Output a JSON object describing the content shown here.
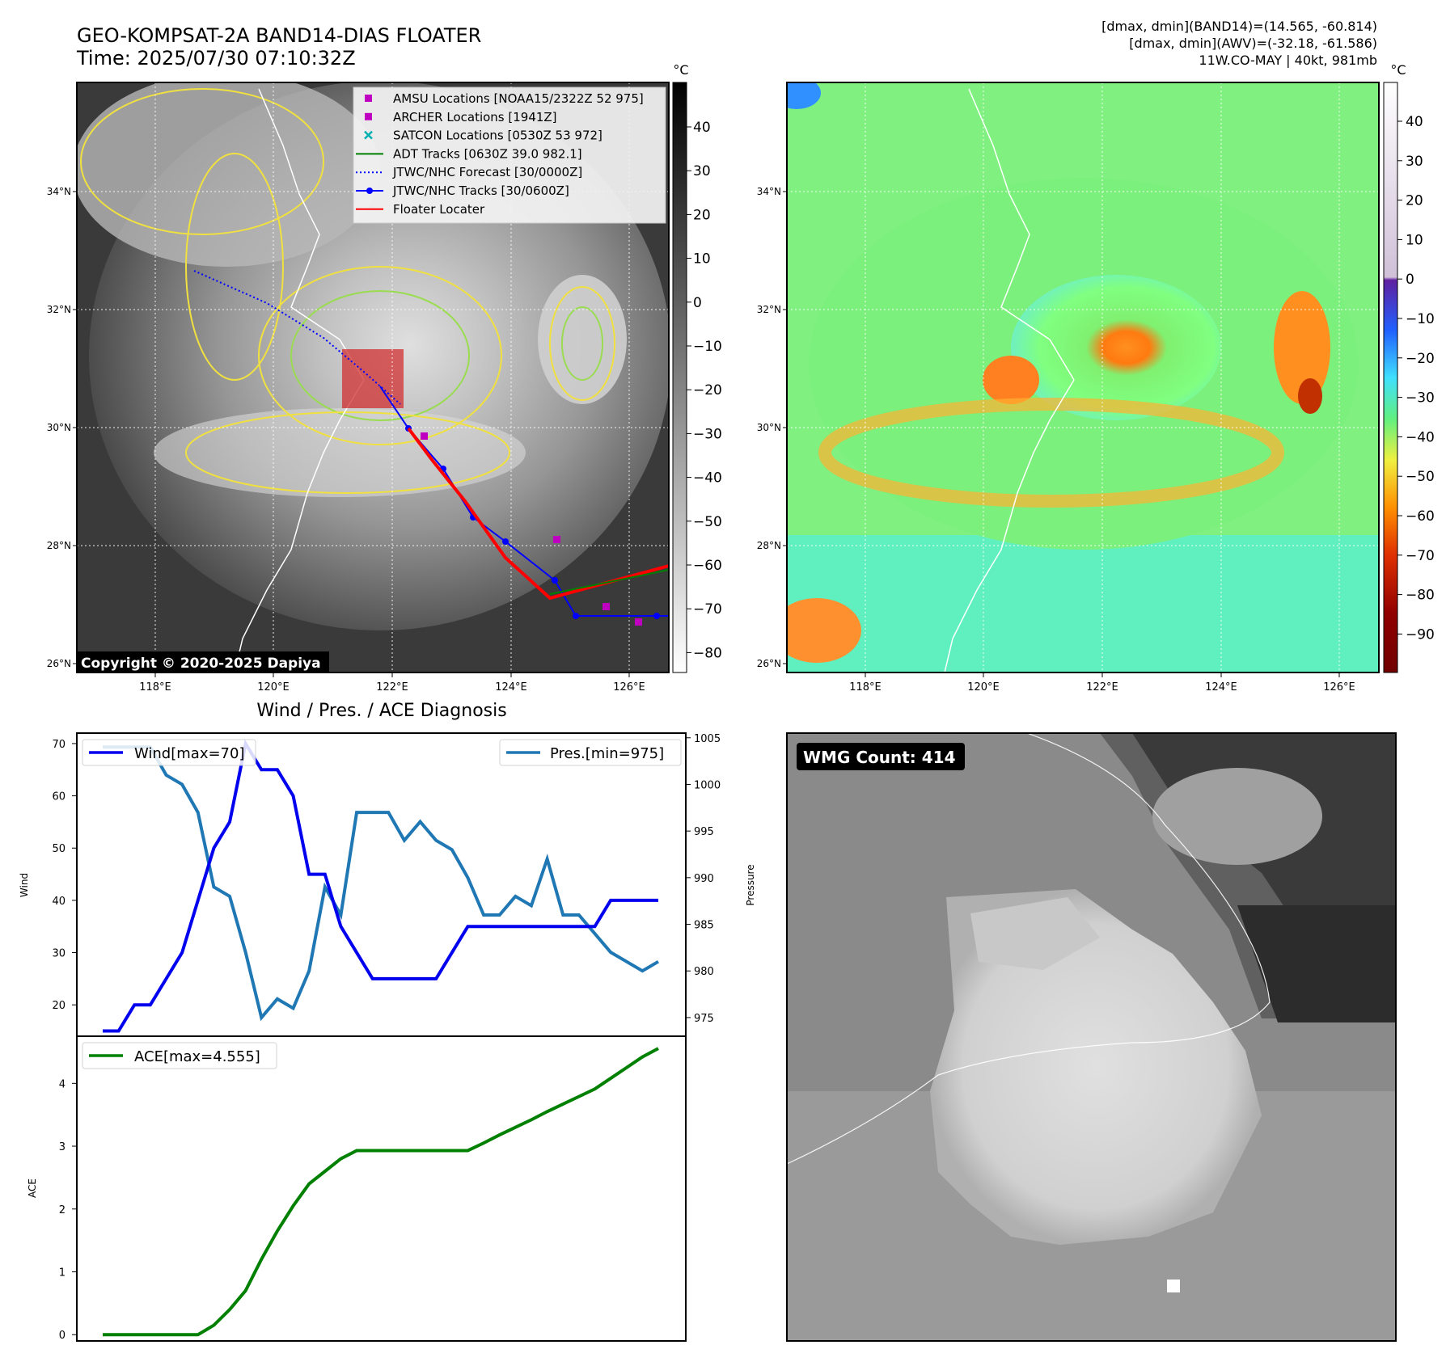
{
  "header": {
    "title_line1": "GEO-KOMPSAT-2A BAND14-DIAS FLOATER",
    "title_line2": "Time: 2025/07/30 07:10:32Z",
    "info_line1": "[dmax, dmin](BAND14)=(14.565, -60.814)",
    "info_line2": "[dmax, dmin](AWV)=(-32.18, -61.586)",
    "info_line3": "11W.CO-MAY | 40kt, 981mb"
  },
  "colors": {
    "wind": "#0000ee",
    "pressure": "#1f77b4",
    "ace": "#008000",
    "adt": "#008000",
    "jtwc": "#0000ff",
    "floater": "#ff0000",
    "amsu": "#c000c0",
    "satcon": "#00b0b0"
  },
  "map": {
    "lat_ticks": [
      "34°N",
      "32°N",
      "30°N",
      "28°N",
      "26°N"
    ],
    "lon_ticks": [
      "118°E",
      "120°E",
      "122°E",
      "124°E",
      "126°E"
    ],
    "copyright": "Copyright © 2020-2025 Dapiya",
    "legend": [
      {
        "label": "AMSU Locations [NOAA15/2322Z 52 975]",
        "marker": "square",
        "color": "#c000c0"
      },
      {
        "label": "ARCHER Locations [1941Z]",
        "marker": "square",
        "color": "#c000c0"
      },
      {
        "label": "SATCON Locations [0530Z 53 972]",
        "marker": "x",
        "color": "#00b0b0"
      },
      {
        "label": "ADT Tracks [0630Z 39.0 982.1]",
        "marker": "line",
        "color": "#008000"
      },
      {
        "label": "JTWC/NHC Forecast [30/0000Z]",
        "marker": "dotted",
        "color": "#0000ff"
      },
      {
        "label": "JTWC/NHC Tracks [30/0600Z]",
        "marker": "linedot",
        "color": "#0000ff"
      },
      {
        "label": "Floater Locater",
        "marker": "line",
        "color": "#ff0000"
      }
    ],
    "colorbar_left": {
      "unit": "°C",
      "ticks": [
        "40",
        "30",
        "20",
        "10",
        "0",
        "−10",
        "−20",
        "−30",
        "−40",
        "−50",
        "−60",
        "−70",
        "−80"
      ]
    },
    "colorbar_right": {
      "unit": "°C",
      "ticks": [
        "40",
        "30",
        "20",
        "10",
        "0",
        "−10",
        "−20",
        "−30",
        "−40",
        "−50",
        "−60",
        "−70",
        "−80",
        "−90"
      ]
    }
  },
  "chart_data": [
    {
      "type": "line",
      "title": "Wind / Pres. / ACE Diagnosis",
      "ylabel": "Wind",
      "y2label": "Pressure",
      "ylim": [
        14,
        72
      ],
      "y2lim": [
        973,
        1005.5
      ],
      "yticks": [
        "70",
        "60",
        "50",
        "40",
        "30",
        "20"
      ],
      "y2ticks": [
        "1005",
        "1000",
        "995",
        "990",
        "985",
        "980",
        "975"
      ],
      "series": [
        {
          "name": "Wind[max=70]",
          "axis": "left",
          "values": [
            15,
            15,
            20,
            20,
            25,
            30,
            40,
            50,
            55,
            70,
            65,
            65,
            60,
            45,
            45,
            35,
            30,
            25,
            25,
            25,
            25,
            25,
            30,
            35,
            35,
            35,
            35,
            35,
            35,
            35,
            35,
            35,
            40,
            40,
            40,
            40
          ]
        },
        {
          "name": "Pres.[min=975]",
          "axis": "right",
          "values": [
            1004,
            1004,
            1004,
            1004,
            1001,
            1000,
            997,
            989,
            988,
            982,
            975,
            977,
            976,
            980,
            989,
            986,
            997,
            997,
            997,
            994,
            996,
            994,
            993,
            990,
            986,
            986,
            988,
            987,
            992,
            986,
            986,
            984,
            982,
            981,
            980,
            981
          ]
        }
      ]
    },
    {
      "type": "line",
      "ylabel": "ACE",
      "ylim": [
        -0.1,
        4.75
      ],
      "yticks": [
        "4",
        "3",
        "2",
        "1",
        "0"
      ],
      "series": [
        {
          "name": "ACE[max=4.555]",
          "values": [
            0,
            0,
            0,
            0,
            0,
            0,
            0,
            0.15,
            0.4,
            0.7,
            1.2,
            1.65,
            2.05,
            2.4,
            2.6,
            2.8,
            2.93,
            2.93,
            2.93,
            2.93,
            2.93,
            2.93,
            2.93,
            2.93,
            3.05,
            3.18,
            3.3,
            3.42,
            3.55,
            3.67,
            3.79,
            3.91,
            4.08,
            4.25,
            4.42,
            4.555
          ]
        }
      ]
    }
  ],
  "wmg": {
    "label": "WMG Count: 414"
  }
}
